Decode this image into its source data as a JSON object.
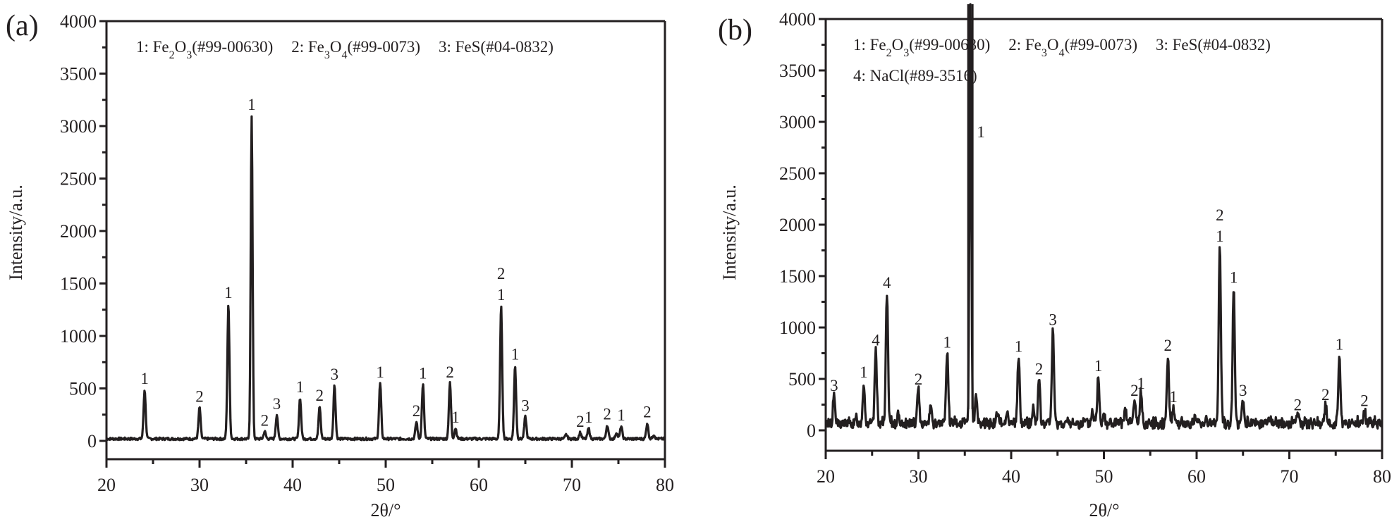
{
  "chart_data": [
    {
      "type": "line",
      "panel": "(a)",
      "title": "",
      "xlabel": "2θ/°",
      "ylabel": "Intensity/a.u.",
      "xlim": [
        20,
        80
      ],
      "ylim": [
        -130,
        4000
      ],
      "xticks": [
        20,
        30,
        40,
        50,
        60,
        70,
        80
      ],
      "yticks": [
        0,
        500,
        1000,
        1500,
        2000,
        2500,
        3000,
        3500,
        4000
      ],
      "grid": false,
      "legend": [
        "1: Fe2O3(#99-00630)",
        "2: Fe3O4(#99-0073)",
        "3: FeS(#04-0832)"
      ],
      "baseline": 20,
      "peaks": [
        {
          "x": 24.1,
          "y": 490,
          "label": "1"
        },
        {
          "x": 30.0,
          "y": 320,
          "label": "2"
        },
        {
          "x": 33.1,
          "y": 1310,
          "label": "1"
        },
        {
          "x": 35.6,
          "y": 3100,
          "label": "1"
        },
        {
          "x": 37.0,
          "y": 90,
          "label": "2"
        },
        {
          "x": 38.3,
          "y": 250,
          "label": "3"
        },
        {
          "x": 40.8,
          "y": 410,
          "label": "1"
        },
        {
          "x": 42.9,
          "y": 330,
          "label": "2"
        },
        {
          "x": 44.5,
          "y": 530,
          "label": "3"
        },
        {
          "x": 49.4,
          "y": 550,
          "label": "1"
        },
        {
          "x": 53.3,
          "y": 180,
          "label": "2"
        },
        {
          "x": 54.0,
          "y": 540,
          "label": "1"
        },
        {
          "x": 56.9,
          "y": 550,
          "label": "2"
        },
        {
          "x": 57.5,
          "y": 120,
          "label": "1"
        },
        {
          "x": 62.4,
          "y": 1290,
          "label": "2\n1"
        },
        {
          "x": 63.9,
          "y": 720,
          "label": "1"
        },
        {
          "x": 65.0,
          "y": 230,
          "label": "3"
        },
        {
          "x": 69.4,
          "y": 60,
          "label": ""
        },
        {
          "x": 70.9,
          "y": 80,
          "label": "2"
        },
        {
          "x": 71.8,
          "y": 120,
          "label": "1"
        },
        {
          "x": 73.8,
          "y": 150,
          "label": "2"
        },
        {
          "x": 74.8,
          "y": 80,
          "label": ""
        },
        {
          "x": 75.3,
          "y": 140,
          "label": "1"
        },
        {
          "x": 78.1,
          "y": 170,
          "label": "2"
        },
        {
          "x": 78.8,
          "y": 60,
          "label": ""
        }
      ]
    },
    {
      "type": "line",
      "panel": "(b)",
      "title": "",
      "xlabel": "2θ/°",
      "ylabel": "Intensity/a.u.",
      "xlim": [
        20,
        80
      ],
      "ylim": [
        -200,
        4000
      ],
      "xticks": [
        20,
        30,
        40,
        50,
        60,
        70,
        80
      ],
      "yticks": [
        0,
        500,
        1000,
        1500,
        2000,
        2500,
        3000,
        3500,
        4000
      ],
      "grid": false,
      "legend": [
        "1: Fe2O3(#99-00630)",
        "2: Fe3O4(#99-0073)",
        "3: FeS(#04-0832)",
        "4: NaCl(#89-3516)"
      ],
      "baseline": 60,
      "peaks": [
        {
          "x": 20.9,
          "y": 330,
          "label": "3"
        },
        {
          "x": 22.2,
          "y": 70,
          "label": ""
        },
        {
          "x": 23.3,
          "y": 100,
          "label": ""
        },
        {
          "x": 24.1,
          "y": 460,
          "label": "1"
        },
        {
          "x": 25.4,
          "y": 770,
          "label": "4"
        },
        {
          "x": 26.6,
          "y": 1330,
          "label": "4"
        },
        {
          "x": 27.8,
          "y": 130,
          "label": ""
        },
        {
          "x": 30.0,
          "y": 390,
          "label": "2"
        },
        {
          "x": 31.3,
          "y": 240,
          "label": ""
        },
        {
          "x": 33.1,
          "y": 750,
          "label": "1"
        },
        {
          "x": 35.6,
          "y": 4150,
          "label": "1"
        },
        {
          "x": 36.2,
          "y": 330,
          "label": ""
        },
        {
          "x": 38.5,
          "y": 160,
          "label": ""
        },
        {
          "x": 39.6,
          "y": 180,
          "label": ""
        },
        {
          "x": 40.8,
          "y": 710,
          "label": "1"
        },
        {
          "x": 42.4,
          "y": 200,
          "label": ""
        },
        {
          "x": 43.0,
          "y": 490,
          "label": "2"
        },
        {
          "x": 44.5,
          "y": 970,
          "label": "3"
        },
        {
          "x": 48.8,
          "y": 180,
          "label": ""
        },
        {
          "x": 49.4,
          "y": 520,
          "label": "1"
        },
        {
          "x": 50.0,
          "y": 170,
          "label": ""
        },
        {
          "x": 52.3,
          "y": 180,
          "label": ""
        },
        {
          "x": 53.3,
          "y": 280,
          "label": "2"
        },
        {
          "x": 54.0,
          "y": 350,
          "label": "1"
        },
        {
          "x": 56.9,
          "y": 720,
          "label": "2"
        },
        {
          "x": 57.5,
          "y": 220,
          "label": "1"
        },
        {
          "x": 59.8,
          "y": 110,
          "label": ""
        },
        {
          "x": 61.0,
          "y": 120,
          "label": ""
        },
        {
          "x": 62.5,
          "y": 1780,
          "label": "2\n1"
        },
        {
          "x": 64.0,
          "y": 1380,
          "label": "1"
        },
        {
          "x": 65.0,
          "y": 280,
          "label": "3"
        },
        {
          "x": 67.9,
          "y": 110,
          "label": ""
        },
        {
          "x": 70.9,
          "y": 140,
          "label": "2"
        },
        {
          "x": 72.9,
          "y": 80,
          "label": ""
        },
        {
          "x": 73.9,
          "y": 240,
          "label": "2"
        },
        {
          "x": 75.4,
          "y": 730,
          "label": "1"
        },
        {
          "x": 78.1,
          "y": 180,
          "label": "2"
        },
        {
          "x": 78.7,
          "y": 100,
          "label": ""
        }
      ]
    }
  ],
  "panels": {
    "a": {
      "label": "(a)",
      "legend_line1": [
        {
          "pre": "1: Fe",
          "sub1": "2",
          "mid": "O",
          "sub2": "3",
          "post": "(#99-00630)"
        },
        {
          "pre": "2: Fe",
          "sub1": "3",
          "mid": "O",
          "sub2": "4",
          "post": "(#99-0073)"
        },
        {
          "pre": "3: FeS(#04-0832)"
        }
      ],
      "xlabel": "2θ/°",
      "ylabel": "Intensity/a.u."
    },
    "b": {
      "label": "(b)",
      "legend_line1": [
        {
          "pre": "1: Fe",
          "sub1": "2",
          "mid": "O",
          "sub2": "3",
          "post": "(#99-00630)"
        },
        {
          "pre": "2: Fe",
          "sub1": "3",
          "mid": "O",
          "sub2": "4",
          "post": "(#99-0073)"
        },
        {
          "pre": "3: FeS(#04-0832)"
        }
      ],
      "legend_line2": "4: NaCl(#89-3516)",
      "xlabel": "2θ/°",
      "ylabel": "Intensity/a.u."
    }
  },
  "style": {
    "line_color": "#231f20",
    "background": "#ffffff"
  }
}
